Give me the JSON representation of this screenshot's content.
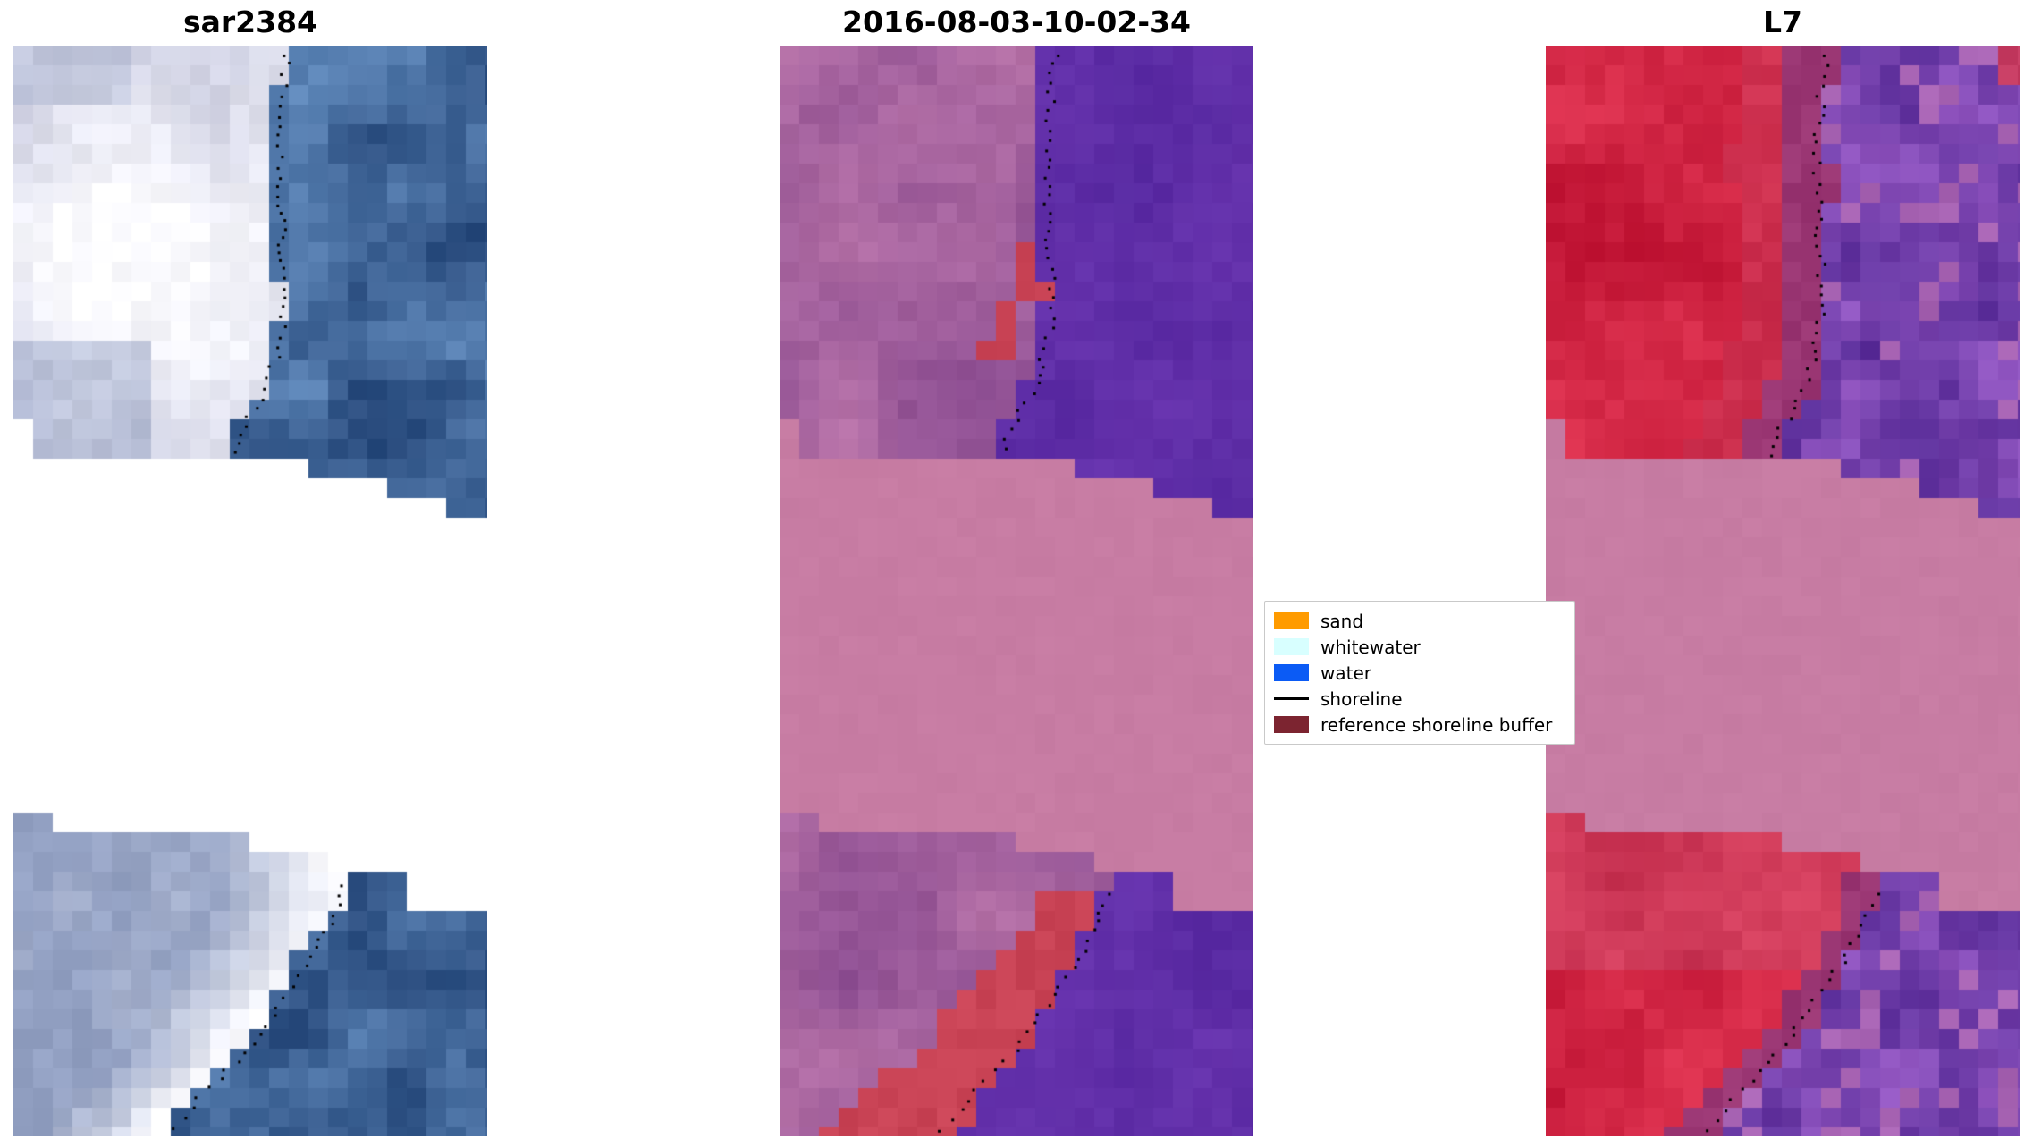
{
  "figure": {
    "background": "#ffffff"
  },
  "chart_data": {
    "type": "heatmap",
    "panels": [
      {
        "id": "sar",
        "title": "sar2384",
        "colors": {
          "land": "#c6c8dd",
          "land_bright": "#fbfbff",
          "land_shadow": "#93a1c3",
          "water": "#3c68a2",
          "water_dark": "#27497b",
          "water_light": "#5d86b8"
        }
      },
      {
        "id": "classified",
        "title": "2016-08-03-10-02-34",
        "colors": {
          "land": "#a05f9c",
          "land_light": "#b873a8",
          "land_dark": "#8d4e92",
          "water": "#5628a0",
          "water_light": "#6a35b0",
          "buffer": "#c94355",
          "mask": "#c77ca3"
        }
      },
      {
        "id": "l7",
        "title": "L7",
        "colors": {
          "land": "#c01434",
          "land_light": "#e03552",
          "land_rose": "#cc5878",
          "water": "#552a96",
          "water_light": "#9659c4",
          "water_pink": "#a864b4",
          "mask": "#c77ca3",
          "corner": "#c43a60"
        }
      }
    ],
    "shoreline_color": "#000000"
  },
  "legend": {
    "items": [
      {
        "label": "sand",
        "color": "#ff9b00",
        "type": "patch"
      },
      {
        "label": "whitewater",
        "color": "#d8ffff",
        "type": "patch"
      },
      {
        "label": "water",
        "color": "#0b5bf5",
        "type": "patch"
      },
      {
        "label": "shoreline",
        "color": "#000000",
        "type": "line"
      },
      {
        "label": "reference shoreline buffer",
        "color": "#7c2430",
        "type": "patch"
      }
    ]
  }
}
